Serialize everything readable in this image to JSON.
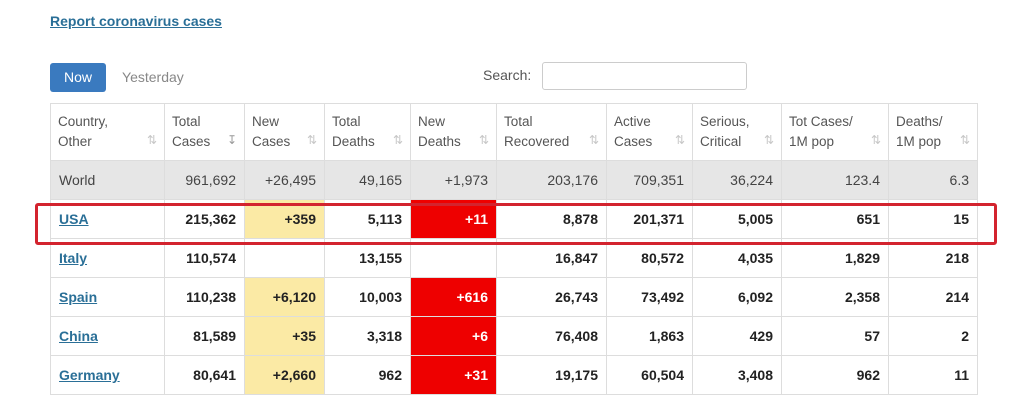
{
  "report_link": "Report coronavirus cases",
  "tabs": {
    "now": "Now",
    "yesterday": "Yesterday"
  },
  "search": {
    "label": "Search:",
    "value": ""
  },
  "table": {
    "headers": [
      {
        "line1": "Country,",
        "line2": "Other"
      },
      {
        "line1": "Total",
        "line2": "Cases"
      },
      {
        "line1": "New",
        "line2": "Cases"
      },
      {
        "line1": "Total",
        "line2": "Deaths"
      },
      {
        "line1": "New",
        "line2": "Deaths"
      },
      {
        "line1": "Total",
        "line2": "Recovered"
      },
      {
        "line1": "Active",
        "line2": "Cases"
      },
      {
        "line1": "Serious,",
        "line2": "Critical"
      },
      {
        "line1": "Tot Cases/",
        "line2": "1M pop"
      },
      {
        "line1": "Deaths/",
        "line2": "1M pop"
      }
    ],
    "sort_icon": "⇅",
    "sort_active_icon": "↧",
    "world": [
      "World",
      "961,692",
      "+26,495",
      "49,165",
      "+1,973",
      "203,176",
      "709,351",
      "36,224",
      "123.4",
      "6.3"
    ],
    "rows": [
      [
        "USA",
        "215,362",
        "+359",
        "5,113",
        "+11",
        "8,878",
        "201,371",
        "5,005",
        "651",
        "15"
      ],
      [
        "Italy",
        "110,574",
        "",
        "13,155",
        "",
        "16,847",
        "80,572",
        "4,035",
        "1,829",
        "218"
      ],
      [
        "Spain",
        "110,238",
        "+6,120",
        "10,003",
        "+616",
        "26,743",
        "73,492",
        "6,092",
        "2,358",
        "214"
      ],
      [
        "China",
        "81,589",
        "+35",
        "3,318",
        "+6",
        "76,408",
        "1,863",
        "429",
        "57",
        "2"
      ],
      [
        "Germany",
        "80,641",
        "+2,660",
        "962",
        "+31",
        "19,175",
        "60,504",
        "3,408",
        "962",
        "11"
      ]
    ]
  },
  "highlight_color": "#d3232e"
}
